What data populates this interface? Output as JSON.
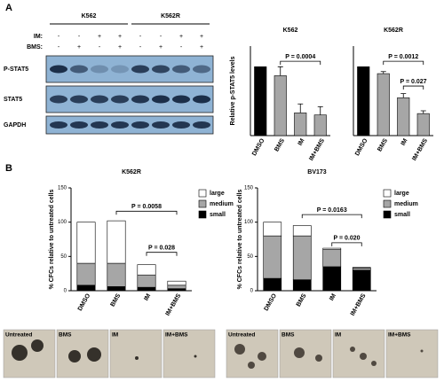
{
  "panels": [
    "A",
    "B"
  ],
  "blot": {
    "cell_lines": [
      "K562",
      "K562R"
    ],
    "treatments": [
      {
        "label": "IM:",
        "signs": [
          "-",
          "-",
          "+",
          "+",
          "-",
          "-",
          "+",
          "+"
        ]
      },
      {
        "label": "BMS:",
        "signs": [
          "-",
          "+",
          "-",
          "+",
          "-",
          "+",
          "-",
          "+"
        ]
      }
    ],
    "rows": [
      "P-STAT5",
      "STAT5",
      "GAPDH"
    ]
  },
  "chart_data": [
    {
      "type": "bar",
      "title": "K562",
      "ylabel": "Relative p-STAT5 levels",
      "categories": [
        "DMSO",
        "BMS",
        "IM",
        "IM+BMS"
      ],
      "values": [
        1.0,
        0.87,
        0.33,
        0.3
      ],
      "errors": [
        0,
        0.13,
        0.13,
        0.12
      ],
      "colors": [
        "#000000",
        "#a6a6a6",
        "#a6a6a6",
        "#a6a6a6"
      ],
      "ylim": [
        0,
        1.3
      ],
      "annotations": [
        "P = 0.0004"
      ]
    },
    {
      "type": "bar",
      "title": "K562R",
      "categories": [
        "DMSO",
        "BMS",
        "IM",
        "IM+BMS"
      ],
      "values": [
        1.0,
        0.9,
        0.55,
        0.32
      ],
      "errors": [
        0,
        0.03,
        0.06,
        0.04
      ],
      "colors": [
        "#000000",
        "#a6a6a6",
        "#a6a6a6",
        "#a6a6a6"
      ],
      "ylim": [
        0,
        1.3
      ],
      "annotations": [
        "P = 0.0012",
        "P = 0.027"
      ]
    },
    {
      "type": "stacked_bar",
      "title": "K562R",
      "ylabel": "% CFCs relative to untreated cells",
      "categories": [
        "DMSO",
        "BMS",
        "IM",
        "IM+BMS"
      ],
      "series": [
        {
          "name": "small",
          "color": "#000000",
          "values": [
            8,
            6,
            5,
            3
          ]
        },
        {
          "name": "medium",
          "color": "#a6a6a6",
          "values": [
            32,
            34,
            18,
            5
          ]
        },
        {
          "name": "large",
          "color": "#ffffff",
          "values": [
            60,
            62,
            15,
            6
          ]
        }
      ],
      "ylim": [
        0,
        150
      ],
      "yticks": [
        0,
        50,
        100,
        150
      ],
      "annotations": [
        "P = 0.0058",
        "P = 0.028"
      ]
    },
    {
      "type": "stacked_bar",
      "title": "BV173",
      "ylabel": "% CFCs relative to untreated cells",
      "categories": [
        "DMSO",
        "BMS",
        "IM",
        "IM+BMS"
      ],
      "series": [
        {
          "name": "small",
          "color": "#000000",
          "values": [
            18,
            16,
            35,
            30
          ]
        },
        {
          "name": "medium",
          "color": "#a6a6a6",
          "values": [
            62,
            64,
            25,
            3
          ]
        },
        {
          "name": "large",
          "color": "#ffffff",
          "values": [
            20,
            15,
            2,
            1
          ]
        }
      ],
      "ylim": [
        0,
        150
      ],
      "yticks": [
        0,
        50,
        100,
        150
      ],
      "annotations": [
        "P = 0.0163",
        "P = 0.020"
      ]
    }
  ],
  "images": [
    {
      "labels": [
        "Untreated",
        "BMS",
        "IM",
        "IM+BMS"
      ]
    },
    {
      "labels": [
        "Untreated",
        "BMS",
        "IM",
        "IM+BMS"
      ]
    }
  ]
}
